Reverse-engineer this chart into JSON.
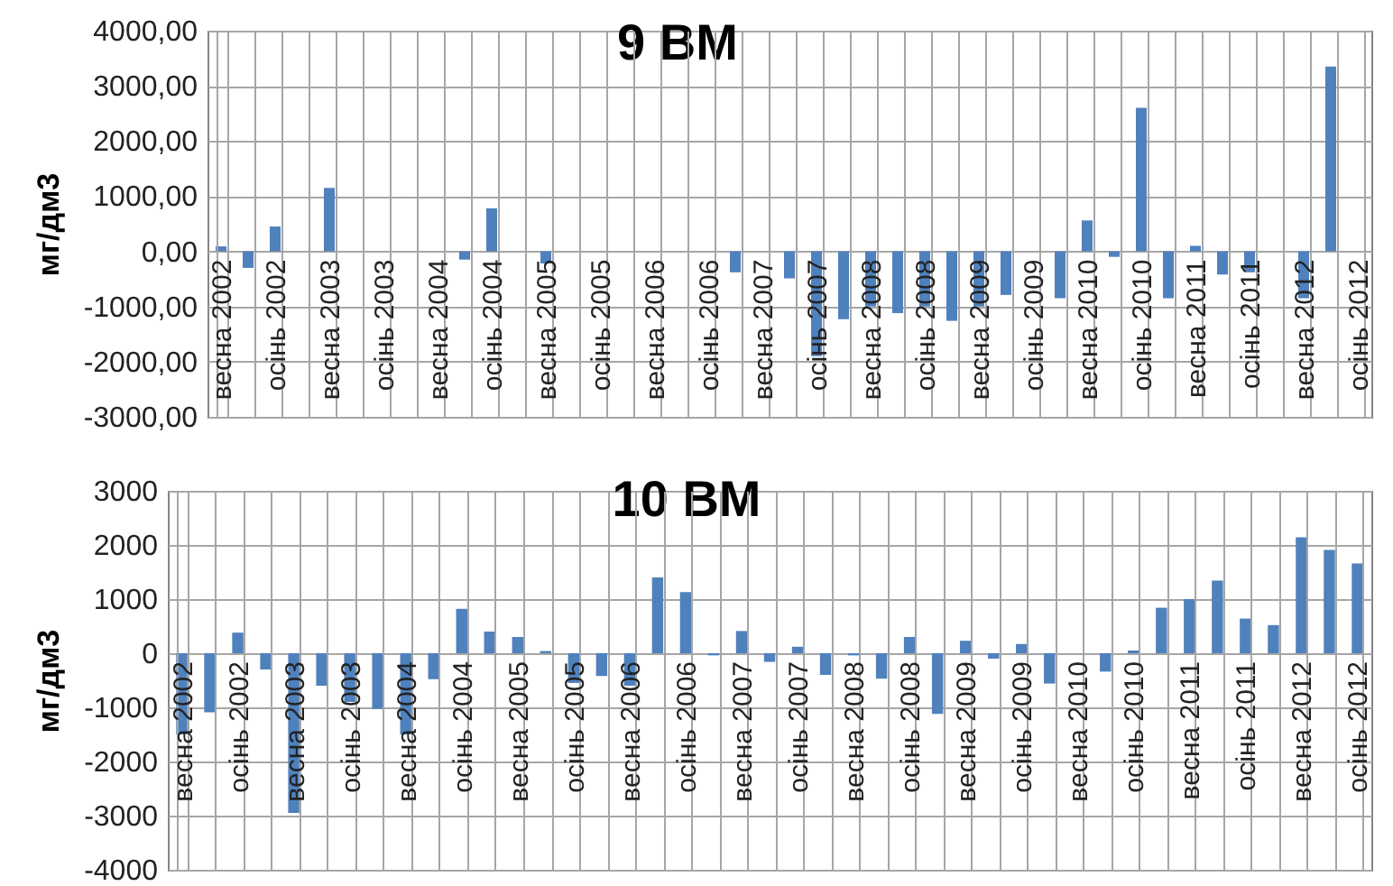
{
  "chart_data": [
    {
      "type": "bar",
      "title": "9 ВМ",
      "ylabel": "мг/дм3",
      "categories": [
        "весна 2002",
        null,
        "осінь 2002",
        null,
        "весна 2003",
        null,
        "осінь 2003",
        null,
        "весна 2004",
        null,
        "осінь 2004",
        null,
        "весна 2005",
        null,
        "осінь 2005",
        null,
        "весна 2006",
        null,
        "осінь 2006",
        null,
        "весна 2007",
        null,
        "осінь 2007",
        null,
        "весна 2008",
        null,
        "осінь 2008",
        null,
        "весна 2009",
        null,
        "осінь 2009",
        null,
        "весна 2010",
        null,
        "осінь 2010",
        null,
        "весна 2011",
        null,
        "осінь 2011",
        null,
        "весна 2012",
        null,
        "осінь 2012"
      ],
      "values": [
        90,
        -300,
        450,
        null,
        1150,
        null,
        null,
        null,
        null,
        -150,
        780,
        null,
        -220,
        null,
        null,
        null,
        null,
        null,
        null,
        -380,
        null,
        -490,
        -1900,
        -1230,
        -1000,
        -1120,
        -1000,
        -1260,
        -1000,
        -790,
        null,
        -850,
        560,
        -100,
        2600,
        -850,
        100,
        -420,
        -380,
        null,
        -850,
        3350,
        null
      ],
      "color": "#4f81bd",
      "ylim": [
        -3000,
        4000
      ],
      "yticks": [
        {
          "value": -3000,
          "label": "-3000,00"
        },
        {
          "value": -2000,
          "label": "-2000,00"
        },
        {
          "value": -1000,
          "label": "-1000,00"
        },
        {
          "value": 0,
          "label": "0,00"
        },
        {
          "value": 1000,
          "label": "1000,00"
        },
        {
          "value": 2000,
          "label": "2000,00"
        },
        {
          "value": 3000,
          "label": "3000,00"
        },
        {
          "value": 4000,
          "label": "4000,00"
        }
      ],
      "grid": true
    },
    {
      "type": "bar",
      "title": "10 ВМ",
      "ylabel": "мг/дм3",
      "categories": [
        "весна 2002",
        null,
        "осінь 2002",
        null,
        "весна 2003",
        null,
        "осінь 2003",
        null,
        "весна 2004",
        null,
        "осінь 2004",
        null,
        "весна 2005",
        null,
        "осінь 2005",
        null,
        "весна 2006",
        null,
        "осінь 2006",
        null,
        "весна 2007",
        null,
        "осінь 2007",
        null,
        "весна 2008",
        null,
        "осінь 2008",
        null,
        "весна 2009",
        null,
        "осінь 2009",
        null,
        "весна 2010",
        null,
        "осінь 2010",
        null,
        "весна 2011",
        null,
        "осінь 2011",
        null,
        "весна 2012",
        null,
        "осінь 2012"
      ],
      "values": [
        -1500,
        -1090,
        380,
        -300,
        -2950,
        -600,
        -900,
        -1030,
        -1500,
        -480,
        820,
        400,
        300,
        40,
        -550,
        -420,
        -600,
        1400,
        1130,
        -40,
        410,
        -160,
        120,
        -400,
        -40,
        -470,
        300,
        -1120,
        230,
        -100,
        170,
        -560,
        null,
        -340,
        50,
        840,
        1000,
        1340,
        640,
        520,
        2140,
        1910,
        1660
      ],
      "color": "#4f81bd",
      "ylim": [
        -4000,
        3000
      ],
      "yticks": [
        -4000,
        -3000,
        -2000,
        -1000,
        0,
        1000,
        2000,
        3000
      ],
      "grid": true
    }
  ]
}
